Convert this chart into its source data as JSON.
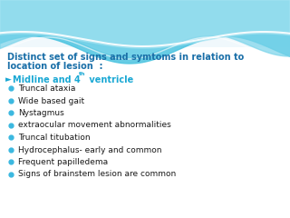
{
  "bg_color": "#f0f8fc",
  "title_line1": "Distinct set of signs and symtoms in relation to",
  "title_line2": "location of lesion  :",
  "title_color": "#1a6fa8",
  "title_fontsize": 7.0,
  "heading_main": "Midline and 4",
  "heading_super": "th",
  "heading_suffix": " ventricle",
  "heading_color": "#1aa8d4",
  "heading_fontsize": 7.0,
  "bullet_color": "#3bb8e0",
  "bullet_text_color": "#1a1a1a",
  "bullet_fontsize": 6.5,
  "bullets": [
    "Truncal ataxia",
    "Wide based gait",
    "Nystagmus",
    "extraocular movement abnormalities",
    "Truncal titubation",
    "Hydrocephalus- early and common",
    "Frequent papilledema",
    "Signs of brainstem lesion are common"
  ],
  "wave1_color": "#5ecee8",
  "wave2_color": "#8adcef",
  "wave3_color": "#b8eaf5"
}
